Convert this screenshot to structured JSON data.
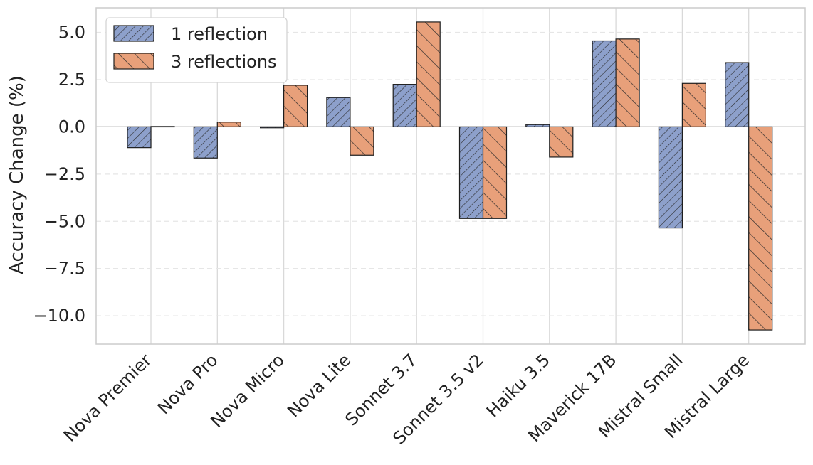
{
  "chart_data": {
    "type": "bar",
    "title": "",
    "xlabel": "",
    "ylabel": "Accuracy Change (%)",
    "ylim": [
      -11.5,
      6.3
    ],
    "yticks": [
      5.0,
      2.5,
      0.0,
      -2.5,
      -5.0,
      -7.5,
      -10.0
    ],
    "ytick_labels": [
      "5.0",
      "2.5",
      "0.0",
      "−2.5",
      "−5.0",
      "−7.5",
      "−10.0"
    ],
    "grid": true,
    "legend_position": "top-left",
    "categories": [
      "Nova Premier",
      "Nova Pro",
      "Nova Micro",
      "Nova Lite",
      "Sonnet 3.7",
      "Sonnet 3.5 v2",
      "Haiku 3.5",
      "Maverick 17B",
      "Mistral Small",
      "Mistral Large"
    ],
    "series": [
      {
        "name": "1 reflection",
        "color": "#8da0cb",
        "hatch": "////",
        "values": [
          -1.1,
          -1.65,
          -0.05,
          1.55,
          2.25,
          -4.85,
          0.12,
          4.55,
          -5.35,
          3.4
        ]
      },
      {
        "name": "3 reflections",
        "color": "#e8a07a",
        "hatch": "\\\\\\\\",
        "values": [
          0.02,
          0.25,
          2.2,
          -1.5,
          5.55,
          -4.85,
          -1.6,
          4.65,
          2.3,
          -10.75
        ]
      }
    ]
  }
}
